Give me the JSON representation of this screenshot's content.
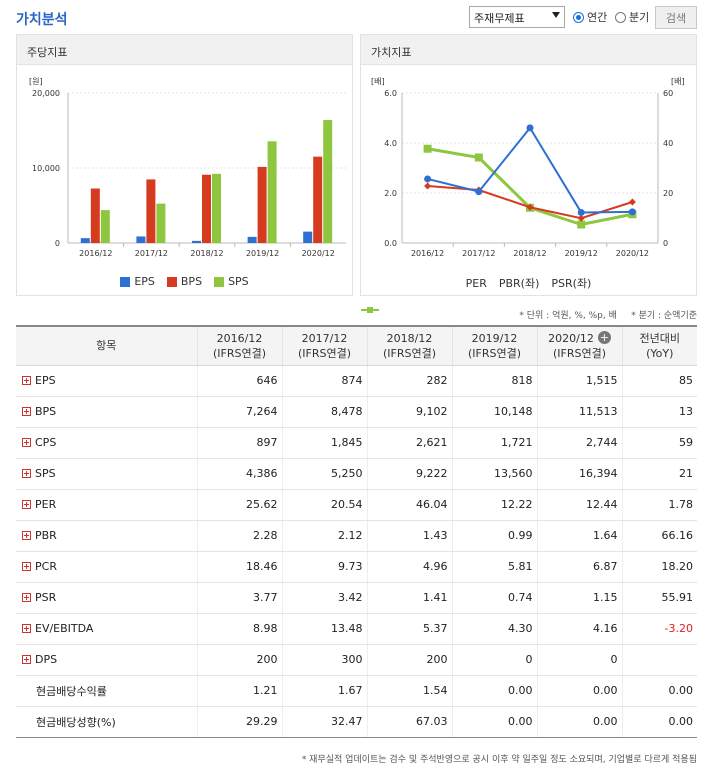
{
  "header": {
    "title": "가치분석",
    "select_value": "주재무제표",
    "radio_annual": "연간",
    "radio_quarter": "분기",
    "search_label": "검색"
  },
  "colors": {
    "blue": "#2e6fd4",
    "red": "#d63b1f",
    "green": "#8ec63f",
    "accent": "#2b63c6"
  },
  "chart_data": [
    {
      "type": "bar",
      "title": "주당지표",
      "ylabel": "[원]",
      "categories": [
        "2016/12",
        "2017/12",
        "2018/12",
        "2019/12",
        "2020/12"
      ],
      "ylim": [
        0,
        20000
      ],
      "yticks": [
        "20,000",
        "10,000",
        "0"
      ],
      "series": [
        {
          "name": "EPS",
          "values": [
            646,
            874,
            282,
            818,
            1515
          ]
        },
        {
          "name": "BPS",
          "values": [
            7264,
            8478,
            9102,
            10148,
            11513
          ]
        },
        {
          "name": "SPS",
          "values": [
            4386,
            5250,
            9222,
            13560,
            16394
          ]
        }
      ]
    },
    {
      "type": "line",
      "title": "가치지표",
      "ylabel_left": "[배]",
      "ylabel_right": "[배]",
      "categories": [
        "2016/12",
        "2017/12",
        "2018/12",
        "2019/12",
        "2020/12"
      ],
      "ylim_left": [
        0,
        6
      ],
      "ylim_right": [
        0,
        60
      ],
      "yticks_left": [
        "6.0",
        "4.0",
        "2.0",
        "0.0"
      ],
      "yticks_right": [
        "60",
        "40",
        "20",
        "0"
      ],
      "series": [
        {
          "name": "PER",
          "axis": "right",
          "values": [
            25.62,
            20.54,
            46.04,
            12.22,
            12.44
          ]
        },
        {
          "name": "PBR(좌)",
          "axis": "left",
          "values": [
            2.28,
            2.12,
            1.43,
            0.99,
            1.64
          ]
        },
        {
          "name": "PSR(좌)",
          "axis": "left",
          "values": [
            3.77,
            3.42,
            1.41,
            0.74,
            1.15
          ]
        }
      ]
    }
  ],
  "notes": {
    "unit": "* 단위 : 억원, %, %p, 배",
    "quarter": "* 분기 : 순액기준"
  },
  "table": {
    "headers": [
      {
        "l1": "항목",
        "l2": ""
      },
      {
        "l1": "2016/12",
        "l2": "(IFRS연결)"
      },
      {
        "l1": "2017/12",
        "l2": "(IFRS연결)"
      },
      {
        "l1": "2018/12",
        "l2": "(IFRS연결)"
      },
      {
        "l1": "2019/12",
        "l2": "(IFRS연결)"
      },
      {
        "l1": "2020/12",
        "l2": "(IFRS연결)"
      },
      {
        "l1": "전년대비",
        "l2": "(YoY)"
      }
    ],
    "rows": [
      {
        "label": "EPS",
        "expand": true,
        "values": [
          "646",
          "874",
          "282",
          "818",
          "1,515",
          "85"
        ]
      },
      {
        "label": "BPS",
        "expand": true,
        "values": [
          "7,264",
          "8,478",
          "9,102",
          "10,148",
          "11,513",
          "13"
        ]
      },
      {
        "label": "CPS",
        "expand": true,
        "values": [
          "897",
          "1,845",
          "2,621",
          "1,721",
          "2,744",
          "59"
        ]
      },
      {
        "label": "SPS",
        "expand": true,
        "values": [
          "4,386",
          "5,250",
          "9,222",
          "13,560",
          "16,394",
          "21"
        ]
      },
      {
        "label": "PER",
        "expand": true,
        "values": [
          "25.62",
          "20.54",
          "46.04",
          "12.22",
          "12.44",
          "1.78"
        ]
      },
      {
        "label": "PBR",
        "expand": true,
        "values": [
          "2.28",
          "2.12",
          "1.43",
          "0.99",
          "1.64",
          "66.16"
        ]
      },
      {
        "label": "PCR",
        "expand": true,
        "values": [
          "18.46",
          "9.73",
          "4.96",
          "5.81",
          "6.87",
          "18.20"
        ]
      },
      {
        "label": "PSR",
        "expand": true,
        "values": [
          "3.77",
          "3.42",
          "1.41",
          "0.74",
          "1.15",
          "55.91"
        ]
      },
      {
        "label": "EV/EBITDA",
        "expand": true,
        "values": [
          "8.98",
          "13.48",
          "5.37",
          "4.30",
          "4.16",
          "-3.20"
        ]
      },
      {
        "label": "DPS",
        "expand": true,
        "values": [
          "200",
          "300",
          "200",
          "0",
          "0",
          ""
        ]
      },
      {
        "label": "현금배당수익률",
        "expand": false,
        "values": [
          "1.21",
          "1.67",
          "1.54",
          "0.00",
          "0.00",
          "0.00"
        ]
      },
      {
        "label": "현금배당성향(%)",
        "expand": false,
        "values": [
          "29.29",
          "32.47",
          "67.03",
          "0.00",
          "0.00",
          "0.00"
        ]
      }
    ]
  },
  "footnote": "* 재무실적 업데이트는 검수 및 주석반영으로 공시 이후 약 일주일 정도 소요되며, 기업별로 다르게 적용됨"
}
